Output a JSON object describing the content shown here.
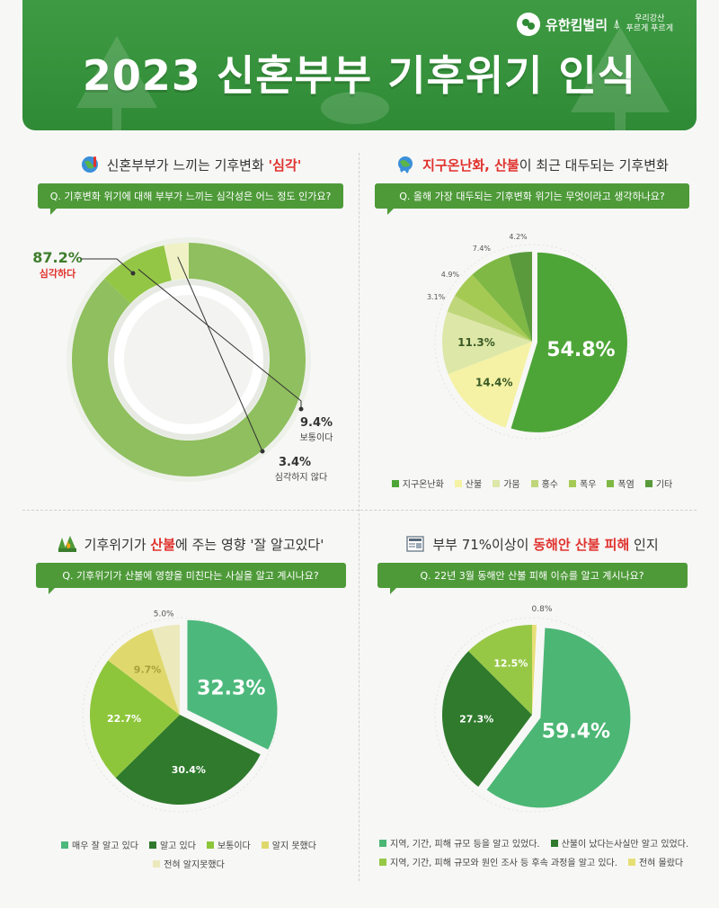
{
  "header": {
    "title": "2023 신혼부부 기후위기 인식",
    "brand_name": "유한킴벌리",
    "brand_slogan_1": "우리강산",
    "brand_slogan_2": "푸르게 푸르게",
    "bg_color": "#3a9740"
  },
  "panels": [
    {
      "title_pre": "신혼부부가 느끼는 기후변화 ",
      "title_red": "'심각'",
      "title_post": "",
      "icon": "earth-thermometer-icon",
      "question": "Q. 기후변화 위기에 대해 부부가 느끼는 심각성은 어느 정도 인가요?"
    },
    {
      "title_pre": "",
      "title_red": "지구온난화, 산불",
      "title_post": "이 최근 대두되는 기후변화",
      "icon": "melting-earth-icon",
      "question": "Q. 올해 가장 대두되는 기후변화 위기는 무엇이라고 생각하나요?"
    },
    {
      "title_pre": "기후위기가 ",
      "title_red": "산불",
      "title_post": "에 주는 영향 '잘 알고있다'",
      "icon": "forest-fire-icon",
      "question": "Q. 기후위기가 산불에 영향을 미친다는 사실을 알고 계시나요?"
    },
    {
      "title_pre": "부부 71%이상이 ",
      "title_red": "동해안 산불 피해",
      "title_post": " 인지",
      "icon": "news-icon",
      "question": "Q. 22년 3월 동해안 산불 피해 이슈를 알고 계시나요?"
    }
  ],
  "chart_data": [
    {
      "type": "pie",
      "style": "donut",
      "categories": [
        "심각하다",
        "보통이다",
        "심각하지 않다"
      ],
      "values": [
        87.2,
        9.4,
        3.4
      ],
      "labels": [
        "87.2%",
        "9.4%",
        "3.4%"
      ],
      "colors": [
        "#8fbf5e",
        "#93c645",
        "#f0f2c6"
      ],
      "legend_position": "none"
    },
    {
      "type": "pie",
      "categories": [
        "지구온난화",
        "산불",
        "가뭄",
        "홍수",
        "폭우",
        "폭염",
        "기타"
      ],
      "values": [
        54.8,
        14.4,
        11.3,
        3.1,
        4.9,
        7.4,
        4.2
      ],
      "labels": [
        "54.8%",
        "14.4%",
        "11.3%",
        "3.1%",
        "4.9%",
        "7.4%",
        "4.2%"
      ],
      "colors": [
        "#4da537",
        "#f5f2a5",
        "#dde7a7",
        "#bfd67a",
        "#a5ca53",
        "#7fb844",
        "#5a9a3c"
      ],
      "legend_position": "bottom"
    },
    {
      "type": "pie",
      "categories": [
        "매우 잘 알고 있다",
        "알고 있다",
        "보통이다",
        "알지 못했다",
        "전혀 알지못했다"
      ],
      "values": [
        32.3,
        30.4,
        22.7,
        9.7,
        5.0
      ],
      "labels": [
        "32.3%",
        "30.4%",
        "22.7%",
        "9.7%",
        "5.0%"
      ],
      "colors": [
        "#4db87c",
        "#2f7a2c",
        "#8ec63b",
        "#dfd96d",
        "#ece9bd"
      ],
      "legend_position": "bottom"
    },
    {
      "type": "pie",
      "categories": [
        "지역, 기간, 피해 규모 등을 알고 있었다.",
        "산불이 났다는사실만 알고 있었다.",
        "지역, 기간, 피해 규모와 원인 조사 등 후속 과정을 알고 있다.",
        "전혀 몰랐다"
      ],
      "values": [
        59.4,
        27.3,
        12.5,
        0.8
      ],
      "labels": [
        "59.4%",
        "27.3%",
        "12.5%",
        "0.8%"
      ],
      "colors": [
        "#4cb674",
        "#2f7a2c",
        "#96c845",
        "#e6df76"
      ],
      "legend_position": "bottom"
    }
  ]
}
